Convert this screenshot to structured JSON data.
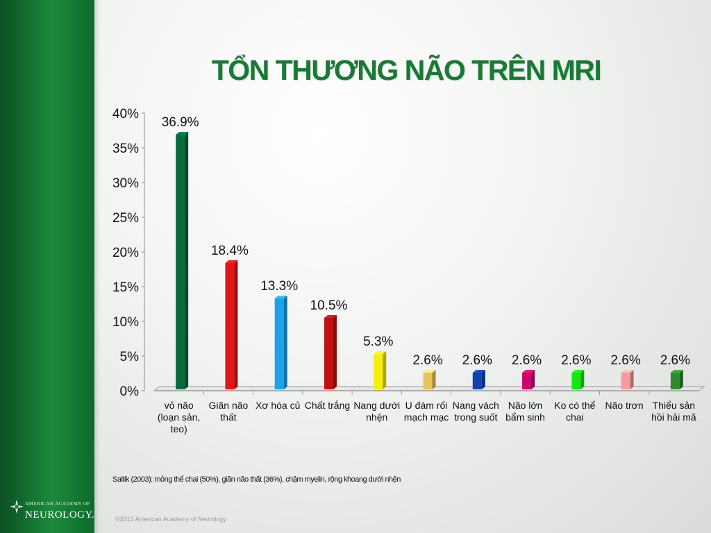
{
  "title": "TỔN THƯƠNG NÃO TRÊN MRI",
  "footnote": "Saltik (2003): mỏng thể chai (50%), giãn não thất (36%), chậm myelin, rộng khoang dưới nhện",
  "copyright": "©2012 American Academy of Neurology",
  "logo": {
    "org": "AMERICAN ACADEMY OF",
    "name": "NEUROLOGY."
  },
  "chart_data": {
    "type": "bar",
    "title": "TỔN THƯƠNG NÃO TRÊN MRI",
    "xlabel": "",
    "ylabel": "",
    "ylim": [
      0,
      40
    ],
    "yticks": [
      "0%",
      "5%",
      "10%",
      "15%",
      "20%",
      "25%",
      "30%",
      "35%",
      "40%"
    ],
    "grid": false,
    "legend": "none",
    "categories": [
      "vỏ não (loạn sản, teo)",
      "Giãn não thất",
      "Xơ hóa củ",
      "Chất trắng",
      "Nang dưới nhện",
      "U đám rối mạch mạc",
      "Nang vách trong suốt",
      "Não lớn bẩm sinh",
      "Ko có thể chai",
      "Não trơn",
      "Thiểu sản hồi hải mã"
    ],
    "values": [
      36.9,
      18.4,
      13.3,
      10.5,
      5.3,
      2.6,
      2.6,
      2.6,
      2.6,
      2.6,
      2.6
    ],
    "value_labels": [
      "36.9%",
      "18.4%",
      "13.3%",
      "10.5%",
      "5.3%",
      "2.6%",
      "2.6%",
      "2.6%",
      "2.6%",
      "2.6%",
      "2.6%"
    ],
    "colors": [
      "#0a6a3e",
      "#e11717",
      "#1aa3e8",
      "#c01010",
      "#f5ef0a",
      "#e8c25a",
      "#1240b0",
      "#c8086a",
      "#14e814",
      "#f79a9a",
      "#2e8a2e"
    ]
  }
}
